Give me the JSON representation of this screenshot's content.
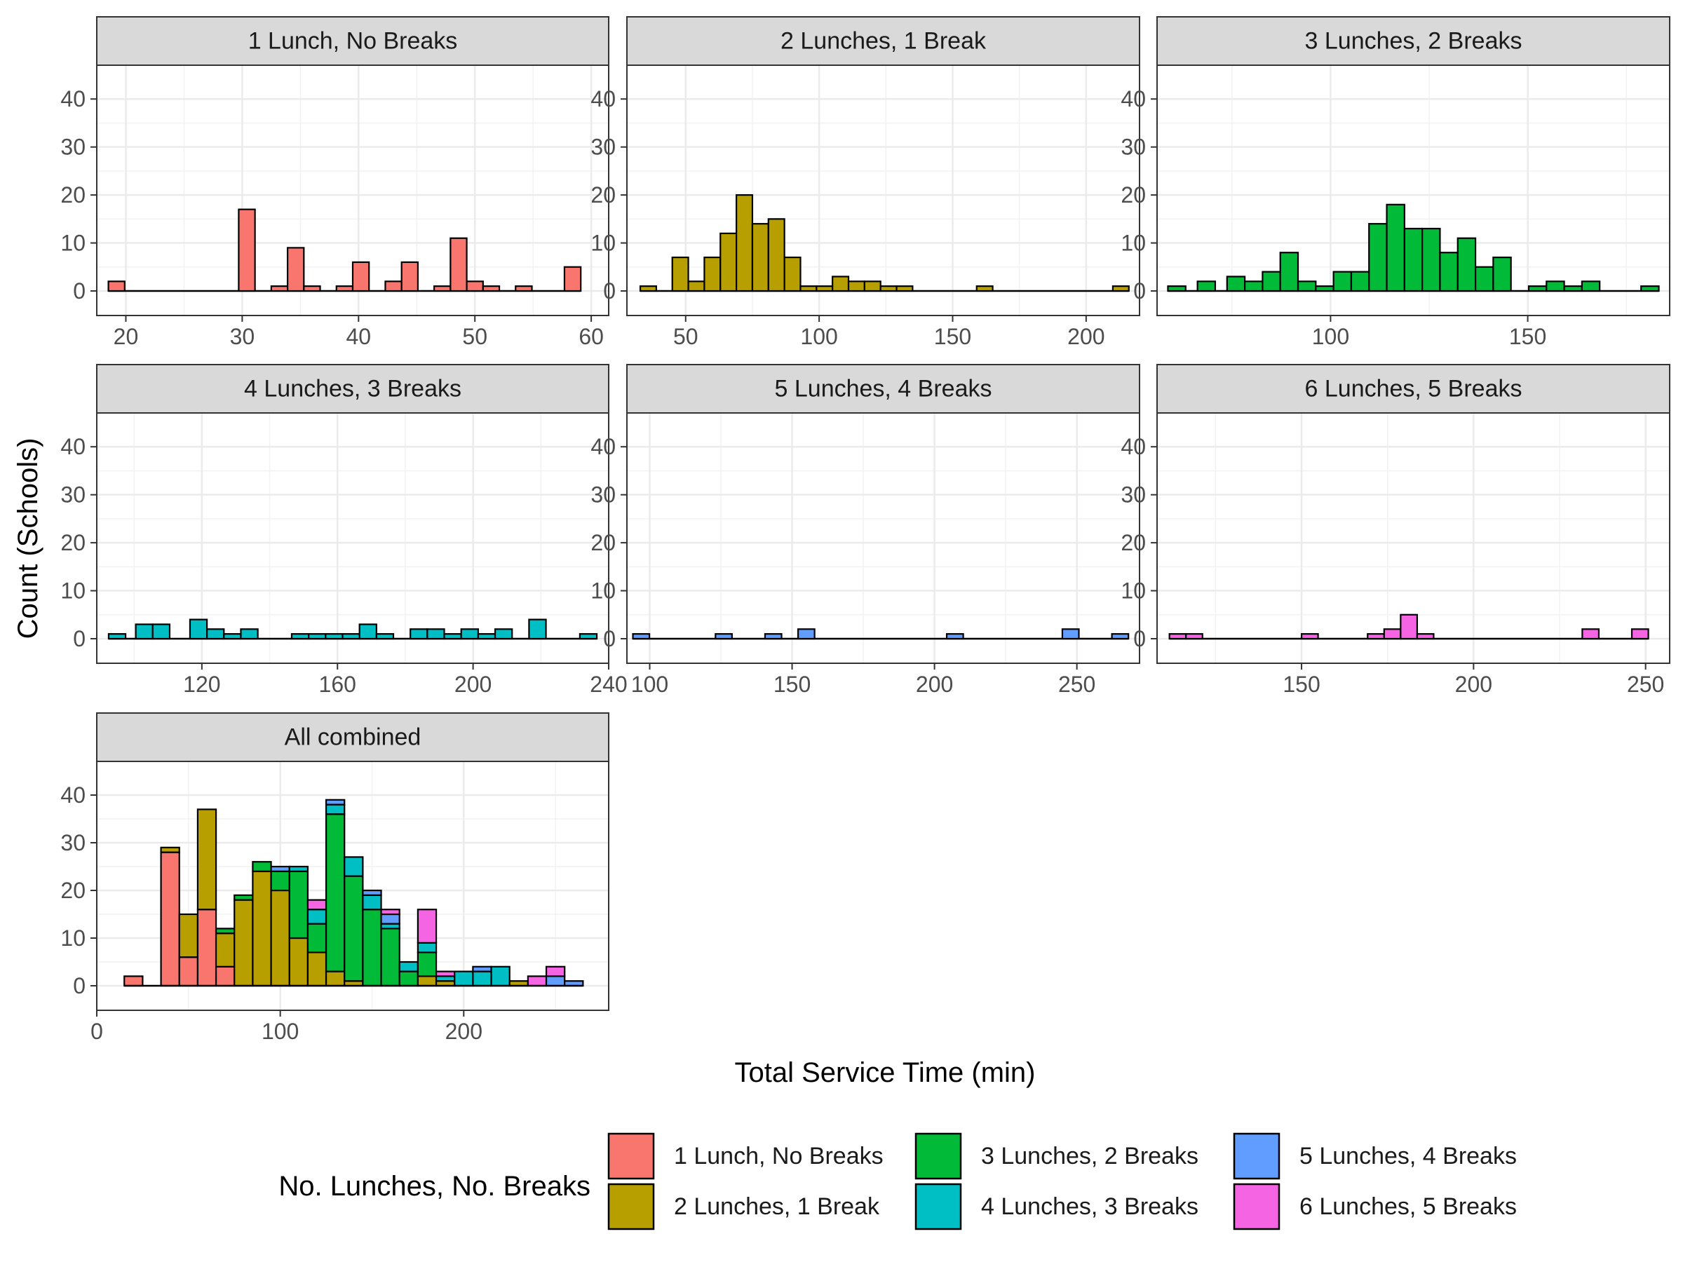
{
  "chart_data": {
    "type": "bar",
    "subtype": "faceted-histogram",
    "xlabel": "Total Service Time (min)",
    "ylabel": "Count (Schools)",
    "ylim": [
      0,
      45
    ],
    "y_ticks": [
      0,
      10,
      20,
      30,
      40
    ],
    "grid": true,
    "legend": {
      "title": "No. Lunches, No. Breaks",
      "position": "bottom",
      "items": [
        {
          "label": "1 Lunch, No Breaks",
          "color": "#F8766D"
        },
        {
          "label": "2 Lunches, 1 Break",
          "color": "#B79F00"
        },
        {
          "label": "3 Lunches, 2 Breaks",
          "color": "#00BA38"
        },
        {
          "label": "4 Lunches, 3 Breaks",
          "color": "#00BFC4"
        },
        {
          "label": "5 Lunches, 4 Breaks",
          "color": "#619CFF"
        },
        {
          "label": "6 Lunches, 5 Breaks",
          "color": "#F564E3"
        }
      ]
    },
    "panels": [
      {
        "title": "1 Lunch, No Breaks",
        "series_index": 0,
        "xlim": [
          17.5,
          61.5
        ],
        "x_ticks": [
          20,
          30,
          40,
          50,
          60
        ],
        "bin_width": 1.4,
        "bins": [
          [
            19.2,
            2
          ],
          [
            30.4,
            17
          ],
          [
            33.2,
            1
          ],
          [
            34.6,
            9
          ],
          [
            36.0,
            1
          ],
          [
            38.8,
            1
          ],
          [
            40.2,
            6
          ],
          [
            43.0,
            2
          ],
          [
            44.4,
            6
          ],
          [
            47.2,
            1
          ],
          [
            48.6,
            11
          ],
          [
            50.0,
            2
          ],
          [
            51.4,
            1
          ],
          [
            54.2,
            1
          ],
          [
            58.4,
            5
          ]
        ]
      },
      {
        "title": "2 Lunches, 1 Break",
        "series_index": 1,
        "xlim": [
          28,
          220
        ],
        "x_ticks": [
          50,
          100,
          150,
          200
        ],
        "bin_width": 6,
        "bins": [
          [
            36,
            1
          ],
          [
            48,
            7
          ],
          [
            54,
            2
          ],
          [
            60,
            7
          ],
          [
            66,
            12
          ],
          [
            72,
            20
          ],
          [
            78,
            14
          ],
          [
            84,
            15
          ],
          [
            90,
            7
          ],
          [
            96,
            1
          ],
          [
            102,
            1
          ],
          [
            108,
            3
          ],
          [
            114,
            2
          ],
          [
            120,
            2
          ],
          [
            126,
            1
          ],
          [
            132,
            1
          ],
          [
            162,
            1
          ],
          [
            213,
            1
          ]
        ]
      },
      {
        "title": "3 Lunches, 2 Breaks",
        "series_index": 2,
        "xlim": [
          56,
          186
        ],
        "x_ticks": [
          100,
          150
        ],
        "bin_width": 4.5,
        "bins": [
          [
            61,
            1
          ],
          [
            68.5,
            2
          ],
          [
            76,
            3
          ],
          [
            80.5,
            2
          ],
          [
            85,
            4
          ],
          [
            89.5,
            8
          ],
          [
            94,
            2
          ],
          [
            98.5,
            1
          ],
          [
            103,
            4
          ],
          [
            107.5,
            4
          ],
          [
            112,
            14
          ],
          [
            116.5,
            18
          ],
          [
            121,
            13
          ],
          [
            125.5,
            13
          ],
          [
            130,
            8
          ],
          [
            134.5,
            11
          ],
          [
            139,
            5
          ],
          [
            143.5,
            7
          ],
          [
            152.5,
            1
          ],
          [
            157,
            2
          ],
          [
            161.5,
            1
          ],
          [
            166,
            2
          ],
          [
            181,
            1
          ]
        ]
      },
      {
        "title": "4 Lunches, 3 Breaks",
        "series_index": 3,
        "xlim": [
          89,
          240
        ],
        "x_ticks": [
          120,
          160,
          200,
          240
        ],
        "bin_width": 5,
        "bins": [
          [
            95,
            1
          ],
          [
            103,
            3
          ],
          [
            108,
            3
          ],
          [
            119,
            4
          ],
          [
            124,
            2
          ],
          [
            129,
            1
          ],
          [
            134,
            2
          ],
          [
            149,
            1
          ],
          [
            154,
            1
          ],
          [
            159,
            1
          ],
          [
            164,
            1
          ],
          [
            169,
            3
          ],
          [
            174,
            1
          ],
          [
            184,
            2
          ],
          [
            189,
            2
          ],
          [
            194,
            1
          ],
          [
            199,
            2
          ],
          [
            204,
            1
          ],
          [
            209,
            2
          ],
          [
            219,
            4
          ],
          [
            234,
            1
          ]
        ]
      },
      {
        "title": "5 Lunches, 4 Breaks",
        "series_index": 4,
        "xlim": [
          92,
          272
        ],
        "x_ticks": [
          100,
          150,
          200,
          250
        ],
        "bin_width": 5.8,
        "bins": [
          [
            97,
            1
          ],
          [
            126,
            1
          ],
          [
            143.4,
            1
          ],
          [
            155,
            2
          ],
          [
            207.2,
            1
          ],
          [
            247.8,
            2
          ],
          [
            265.2,
            1
          ]
        ]
      },
      {
        "title": "6 Lunches, 5 Breaks",
        "series_index": 5,
        "xlim": [
          108,
          257
        ],
        "x_ticks": [
          150,
          200,
          250
        ],
        "bin_width": 4.8,
        "bins": [
          [
            114,
            1
          ],
          [
            118.8,
            1
          ],
          [
            152.4,
            1
          ],
          [
            171.6,
            1
          ],
          [
            176.4,
            2
          ],
          [
            181.2,
            5
          ],
          [
            186,
            1
          ],
          [
            234,
            2
          ],
          [
            248.4,
            2
          ]
        ]
      },
      {
        "title": "All combined",
        "stacked": true,
        "xlim": [
          0,
          279
        ],
        "x_ticks": [
          0,
          100,
          200
        ],
        "bin_width": 10,
        "bin_starts": [
          15,
          25,
          35,
          45,
          55,
          65,
          75,
          85,
          95,
          105,
          115,
          125,
          135,
          145,
          155,
          165,
          175,
          185,
          195,
          205,
          215,
          225,
          235,
          245,
          255
        ],
        "series": [
          {
            "name": "1 Lunch, No Breaks",
            "values": [
              2,
              0,
              28,
              6,
              16,
              4,
              0,
              0,
              0,
              0,
              0,
              0,
              0,
              0,
              0,
              0,
              0,
              0,
              0,
              0,
              0,
              0,
              0,
              0,
              0
            ]
          },
          {
            "name": "2 Lunches, 1 Break",
            "values": [
              0,
              0,
              1,
              9,
              21,
              7,
              18,
              24,
              20,
              10,
              7,
              3,
              1,
              0,
              0,
              0,
              2,
              1,
              0,
              0,
              0,
              1,
              0,
              0,
              0
            ]
          },
          {
            "name": "3 Lunches, 2 Breaks",
            "values": [
              0,
              0,
              0,
              0,
              0,
              1,
              1,
              2,
              4,
              14,
              6,
              33,
              22,
              16,
              12,
              3,
              5,
              0,
              0,
              0,
              0,
              0,
              0,
              0,
              0
            ]
          },
          {
            "name": "4 Lunches, 3 Breaks",
            "values": [
              0,
              0,
              0,
              0,
              0,
              0,
              0,
              0,
              0,
              1,
              3,
              2,
              4,
              3,
              1,
              2,
              2,
              1,
              3,
              3,
              4,
              0,
              0,
              0,
              0
            ]
          },
          {
            "name": "5 Lunches, 4 Breaks",
            "values": [
              0,
              0,
              0,
              0,
              0,
              0,
              0,
              0,
              1,
              0,
              0,
              1,
              0,
              1,
              2,
              0,
              0,
              0,
              0,
              1,
              0,
              0,
              0,
              2,
              1
            ]
          },
          {
            "name": "6 Lunches, 5 Breaks",
            "values": [
              0,
              0,
              0,
              0,
              0,
              0,
              0,
              0,
              0,
              0,
              2,
              0,
              0,
              0,
              1,
              0,
              7,
              1,
              0,
              0,
              0,
              0,
              2,
              2,
              0
            ]
          }
        ]
      }
    ]
  }
}
